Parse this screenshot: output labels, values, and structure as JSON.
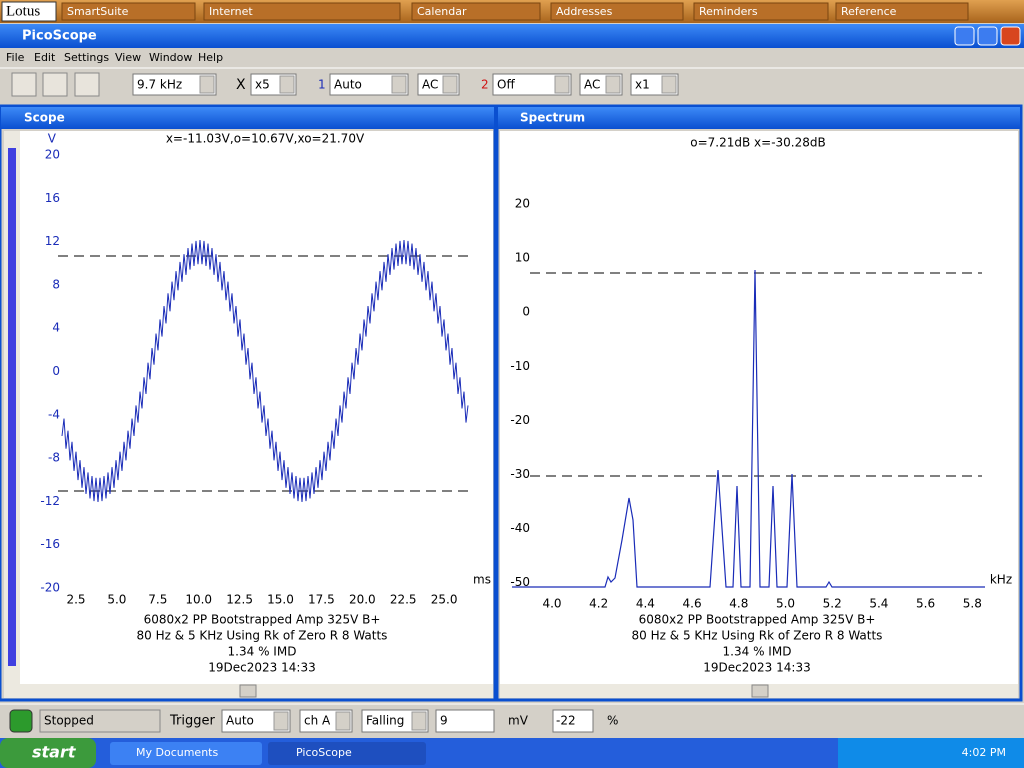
{
  "lotus_bar": {
    "logo": "Lotus",
    "items": [
      "SmartSuite",
      "Internet",
      "Calendar",
      "Addresses",
      "Reminders",
      "Reference"
    ]
  },
  "window": {
    "title": "PicoScope",
    "menu": [
      "File",
      "Edit",
      "Settings",
      "View",
      "Window",
      "Help"
    ],
    "toolbar": {
      "timebase": "9.7 kHz",
      "x_label": "X",
      "zoom": "x5",
      "ch1_label": "1",
      "ch1_range": "Auto",
      "ch1_coupling": "AC",
      "ch2_label": "2",
      "ch2_range": "Off",
      "ch2_coupling": "AC",
      "ch2_mult": "x1"
    }
  },
  "scope": {
    "title": "Scope",
    "readout": "x=-11.03V,o=10.67V,xo=21.70V",
    "y_unit": "V",
    "yticks": [
      "20",
      "16",
      "12",
      "8",
      "4",
      "0",
      "-4",
      "-8",
      "-12",
      "-16",
      "-20"
    ],
    "xticks": [
      "2.5",
      "5.0",
      "7.5",
      "10.0",
      "12.5",
      "15.0",
      "17.5",
      "20.0",
      "22.5",
      "25.0"
    ],
    "x_unit": "ms",
    "caption": [
      "6080x2 PP Bootstrapped Amp 325V B+",
      "80 Hz & 5 KHz Using Rk of Zero R 8 Watts",
      "1.34 % IMD",
      "19Dec2023  14:33"
    ]
  },
  "spectrum": {
    "title": "Spectrum",
    "readout": "o=7.21dB  x=-30.28dB",
    "yticks": [
      "20",
      "10",
      "0",
      "-10",
      "-20",
      "-30",
      "-40",
      "-50"
    ],
    "xticks": [
      "4.0",
      "4.2",
      "4.4",
      "4.6",
      "4.8",
      "5.0",
      "5.2",
      "5.4",
      "5.6",
      "5.8"
    ],
    "x_unit": "kHz",
    "caption": [
      "6080x2 PP Bootstrapped Amp 325V B+",
      "80 Hz & 5 KHz Using Rk of Zero R 8 Watts",
      "1.34 % IMD",
      "19Dec2023  14:33"
    ]
  },
  "status": {
    "state": "Stopped",
    "trigger_label": "Trigger",
    "mode": "Auto",
    "channel": "ch A",
    "edge": "Falling",
    "level": "9",
    "level_unit": "mV",
    "delay": "-22",
    "delay_unit": "%"
  },
  "taskbar": {
    "start": "start",
    "items": [
      "My Documents",
      "PicoScope"
    ],
    "clock": "4:02 PM"
  }
}
